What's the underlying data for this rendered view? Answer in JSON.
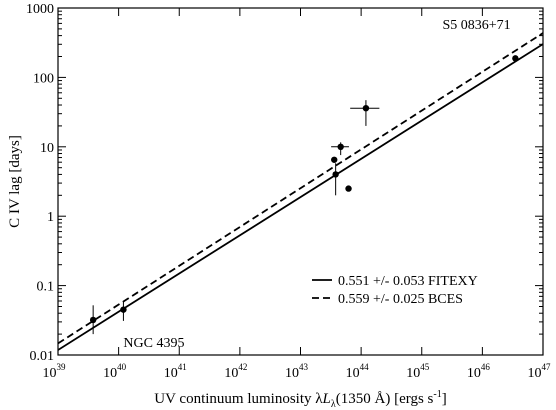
{
  "chart_data": {
    "type": "scatter",
    "title": "",
    "xlabel": {
      "pre": "UV continuum luminosity λ",
      "italic": "L",
      "sub": "λ",
      "mid": "(1350 Å)  [ergs s",
      "sup": "-1",
      "post": "]"
    },
    "ylabel": "C IV lag [days]",
    "xscale": "log",
    "yscale": "log",
    "xlim": [
      1e+39,
      1e+47
    ],
    "ylim": [
      0.01,
      1000
    ],
    "x_ticks": [
      {
        "value": 1e+39,
        "base": "10",
        "exp": "39"
      },
      {
        "value": 1e+40,
        "base": "10",
        "exp": "40"
      },
      {
        "value": 1e+41,
        "base": "10",
        "exp": "41"
      },
      {
        "value": 1e+42,
        "base": "10",
        "exp": "42"
      },
      {
        "value": 1e+43,
        "base": "10",
        "exp": "43"
      },
      {
        "value": 1e+44,
        "base": "10",
        "exp": "44"
      },
      {
        "value": 1e+45,
        "base": "10",
        "exp": "45"
      },
      {
        "value": 1e+46,
        "base": "10",
        "exp": "46"
      },
      {
        "value": 1e+47,
        "base": "10",
        "exp": "47"
      }
    ],
    "y_ticks": [
      {
        "value": 0.01,
        "label": "0.01"
      },
      {
        "value": 0.1,
        "label": "0.1"
      },
      {
        "value": 1,
        "label": "1"
      },
      {
        "value": 10,
        "label": "10"
      },
      {
        "value": 100,
        "label": "100"
      },
      {
        "value": 1000,
        "label": "1000"
      }
    ],
    "points": [
      {
        "x": 3.8e+39,
        "y": 0.032,
        "xlo": 3.8e+39,
        "xhi": 3.8e+39,
        "ylo": 0.02,
        "yhi": 0.052
      },
      {
        "x": 1.2e+40,
        "y": 0.045,
        "xlo": 1.2e+40,
        "xhi": 1.2e+40,
        "ylo": 0.031,
        "yhi": 0.06
      },
      {
        "x": 3.6e+43,
        "y": 6.5,
        "xlo": 3.6e+43,
        "xhi": 3.6e+43,
        "ylo": 6.5,
        "yhi": 6.5
      },
      {
        "x": 3.8e+43,
        "y": 4.0,
        "xlo": 3.8e+43,
        "xhi": 3.8e+43,
        "ylo": 2.0,
        "yhi": 5.8
      },
      {
        "x": 4.6e+43,
        "y": 10.0,
        "xlo": 3.2e+43,
        "xhi": 6.3e+43,
        "ylo": 7.6,
        "yhi": 11.6
      },
      {
        "x": 6.2e+43,
        "y": 2.5,
        "xlo": 6.2e+43,
        "xhi": 6.2e+43,
        "ylo": 2.5,
        "yhi": 2.5
      },
      {
        "x": 1.2e+44,
        "y": 36,
        "xlo": 6.6e+43,
        "xhi": 2e+44,
        "ylo": 20,
        "yhi": 47
      },
      {
        "x": 3.5e+46,
        "y": 188,
        "xlo": 3.5e+46,
        "xhi": 3.5e+46,
        "ylo": 188,
        "yhi": 188
      }
    ],
    "series": [
      {
        "name": "0.551 +/- 0.053 FITEXY",
        "style": "solid",
        "slope": 0.551,
        "y_at_x0": 0.0118,
        "x0": 1e+39
      },
      {
        "name": "0.559 +/- 0.025 BCES",
        "style": "dashed",
        "slope": 0.559,
        "y_at_x0": 0.0147,
        "x0": 1e+39
      }
    ],
    "annotations": [
      {
        "text": "S5 0836+71",
        "x": 2.2e+45,
        "y": 500
      },
      {
        "text": "NGC 4395",
        "x": 1.2e+40,
        "y": 0.013
      }
    ],
    "legend_position": "bottom-right",
    "grid": false,
    "colors": {
      "ink": "#000000",
      "background": "#ffffff"
    }
  }
}
